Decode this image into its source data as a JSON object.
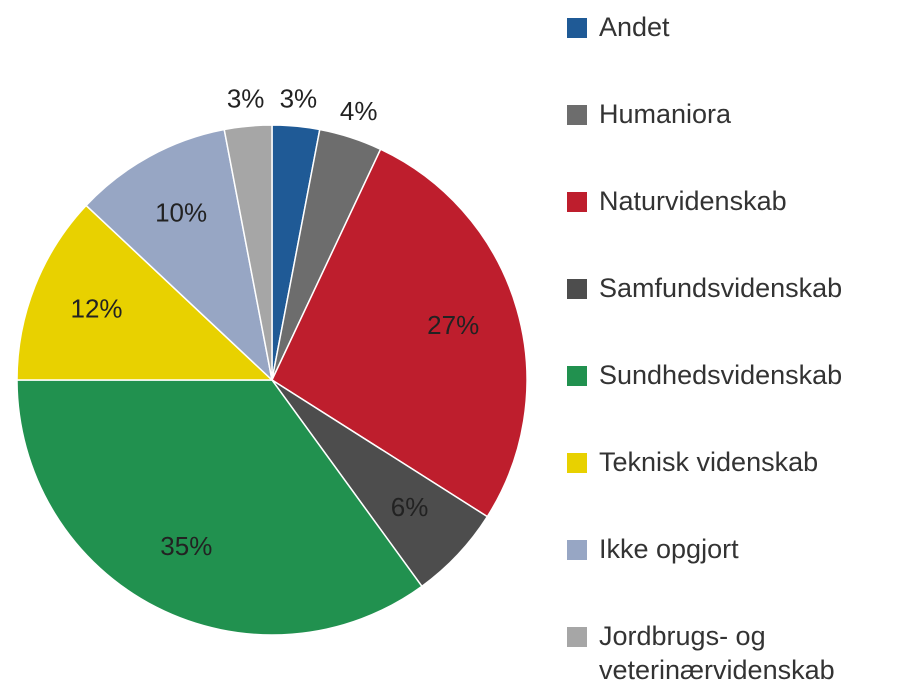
{
  "chart_data": {
    "type": "pie",
    "categories": [
      "Andet",
      "Humaniora",
      "Naturvidenskab",
      "Samfundsvidenskab",
      "Sundhedsvidenskab",
      "Teknisk videnskab",
      "Ikke opgjort",
      "Jordbrugs- og veterinærvidenskab"
    ],
    "values": [
      3,
      4,
      27,
      6,
      35,
      12,
      10,
      3
    ],
    "value_labels": [
      "3%",
      "4%",
      "27%",
      "6%",
      "35%",
      "12%",
      "10%",
      "3%"
    ],
    "colors": [
      "#1f5a96",
      "#6d6d6d",
      "#be1e2d",
      "#4d4d4d",
      "#21914f",
      "#e8d100",
      "#97a6c4",
      "#a6a6a6"
    ],
    "legend": "right"
  }
}
